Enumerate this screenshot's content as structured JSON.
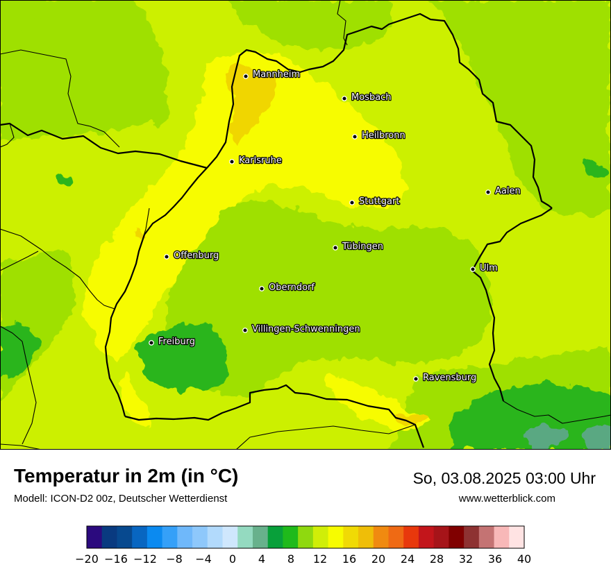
{
  "map": {
    "cities": [
      {
        "name": "Mannheim"
      },
      {
        "name": "Mosbach"
      },
      {
        "name": "Heilbronn"
      },
      {
        "name": "Karlsruhe"
      },
      {
        "name": "Aalen"
      },
      {
        "name": "Stuttgart"
      },
      {
        "name": "Tübingen"
      },
      {
        "name": "Offenburg"
      },
      {
        "name": "Ulm"
      },
      {
        "name": "Oberndorf"
      },
      {
        "name": "Villingen-Schwenningen"
      },
      {
        "name": "Freiburg"
      },
      {
        "name": "Ravensburg"
      }
    ]
  },
  "info": {
    "title": "Temperatur in 2m (in °C)",
    "subtitle": "Modell: ICON-D2 00z, Deutscher Wetterdienst",
    "datetime": "So, 03.08.2025 03:00 Uhr",
    "website": "www.wetterblick.com"
  },
  "legend": {
    "min": -20,
    "max": 40,
    "step": 2,
    "colors": [
      "#2b0a7e",
      "#093a80",
      "#07498f",
      "#0866c1",
      "#0b8af0",
      "#35a0f8",
      "#6fb8fa",
      "#8ec8fb",
      "#b2dafc",
      "#cfe7fd",
      "#94dac0",
      "#68b18c",
      "#08a03a",
      "#1fba1b",
      "#8fd90f",
      "#d0ee08",
      "#f7fc00",
      "#f0da05",
      "#efbe08",
      "#f08a10",
      "#ef6a14",
      "#e8380c",
      "#c3151b",
      "#a61419",
      "#800000",
      "#8e3232",
      "#c47373",
      "#f8b8b8",
      "#ffe3e3"
    ],
    "tick_values": [
      -20,
      -16,
      -12,
      -8,
      -4,
      0,
      4,
      8,
      12,
      16,
      20,
      24,
      28,
      32,
      36,
      40
    ],
    "tick_labels": [
      "−20",
      "−16",
      "−12",
      "−8",
      "−4",
      "0",
      "4",
      "8",
      "12",
      "16",
      "20",
      "24",
      "28",
      "32",
      "36",
      "40"
    ]
  },
  "colors": {
    "base_field": "#ccf000",
    "warm_field": "#f7fc00",
    "warmest_field": "#f0d605",
    "mild_field": "#9fe000",
    "cool_field": "#2bb51c",
    "coolest_field": "#5aa882"
  }
}
